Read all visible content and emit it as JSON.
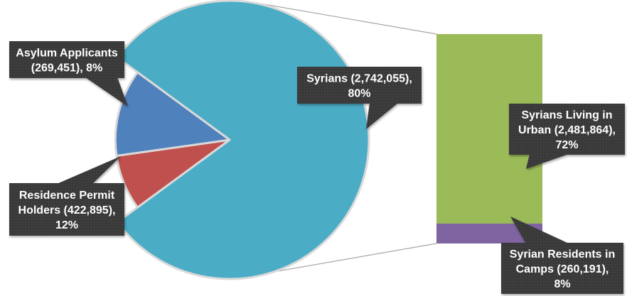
{
  "chart_data": {
    "type": "bar-of-pie",
    "title": "",
    "pie": {
      "slices": [
        {
          "label_lines": [
            "Syrians (2,742,055),",
            "80%"
          ],
          "value": 2742055,
          "percent": 80,
          "color": "#4bacc6"
        },
        {
          "label_lines": [
            "Asylum Applicants",
            "(269,451), 8%"
          ],
          "value": 269451,
          "percent": 8,
          "color": "#c0504d"
        },
        {
          "label_lines": [
            "Residence Permit",
            "Holders (422,895),",
            "12%"
          ],
          "value": 422895,
          "percent": 12,
          "color": "#4f81bd"
        }
      ]
    },
    "bar": {
      "of_slice": "Syrians",
      "segments": [
        {
          "label_lines": [
            "Syrians Living in",
            "Urban (2,481,864),",
            "72%"
          ],
          "value": 2481864,
          "percent": 72,
          "color": "#9bbb59"
        },
        {
          "label_lines": [
            "Syrian Residents in",
            "Camps (260,191),",
            "8%"
          ],
          "value": 260191,
          "percent": 8,
          "color": "#8064a2"
        }
      ]
    },
    "callout_color": "#3a3a3a"
  }
}
